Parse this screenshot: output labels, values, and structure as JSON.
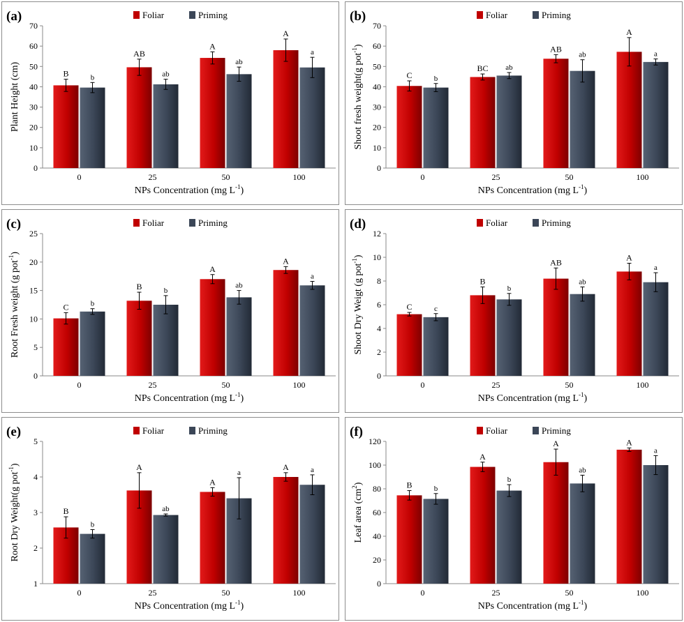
{
  "legend": {
    "foliar": "Foliar",
    "priming": "Priming"
  },
  "colors": {
    "foliar": "#c00000",
    "priming": "#3b4657"
  },
  "chart_data": [
    {
      "type": "bar",
      "panel": "(a)",
      "title": "",
      "ylabel": "Plant Height (cm)",
      "xlabel": "NPs Concentration (mg L",
      "xlabel_sup": "-1",
      "xlabel_end": ")",
      "categories": [
        "0",
        "25",
        "50",
        "100"
      ],
      "ylim": [
        0,
        70
      ],
      "yticks": [
        0,
        10,
        20,
        30,
        40,
        50,
        60,
        70
      ],
      "series": [
        {
          "name": "Foliar",
          "values": [
            40.7,
            49.6,
            54.2,
            58.0
          ],
          "errors": [
            3.0,
            4.0,
            3.0,
            5.5
          ],
          "letters": [
            "B",
            "AB",
            "A",
            "A"
          ]
        },
        {
          "name": "Priming",
          "values": [
            39.6,
            41.2,
            46.2,
            49.5
          ],
          "errors": [
            2.5,
            2.5,
            3.5,
            5.0
          ],
          "letters": [
            "b",
            "ab",
            "ab",
            "a"
          ]
        }
      ]
    },
    {
      "type": "bar",
      "panel": "(b)",
      "title": "",
      "ylabel": "Shoot fresh weight(g pot",
      "ylabel_sup": "-1",
      "ylabel_end": ")",
      "xlabel": "NPs Concentration (mg L",
      "xlabel_sup": "-1",
      "xlabel_end": ")",
      "categories": [
        "0",
        "25",
        "50",
        "100"
      ],
      "ylim": [
        0,
        70
      ],
      "yticks": [
        0,
        10,
        20,
        30,
        40,
        50,
        60,
        70
      ],
      "series": [
        {
          "name": "Foliar",
          "values": [
            40.4,
            44.8,
            53.8,
            57.2
          ],
          "errors": [
            2.5,
            1.5,
            2.0,
            7.0
          ],
          "letters": [
            "C",
            "BC",
            "AB",
            "A"
          ]
        },
        {
          "name": "Priming",
          "values": [
            39.6,
            45.5,
            47.8,
            52.2
          ],
          "errors": [
            2.0,
            1.5,
            5.5,
            1.5
          ],
          "letters": [
            "b",
            "ab",
            "ab",
            "a"
          ]
        }
      ]
    },
    {
      "type": "bar",
      "panel": "(c)",
      "title": "",
      "ylabel": "Root Fresh weight (g pot",
      "ylabel_sup": "-1",
      "ylabel_end": ")",
      "xlabel": "NPs Concentration (mg L",
      "xlabel_sup": "-1",
      "xlabel_end": ")",
      "categories": [
        "0",
        "25",
        "50",
        "100"
      ],
      "ylim": [
        0,
        25
      ],
      "yticks": [
        0,
        5,
        10,
        15,
        20,
        25
      ],
      "series": [
        {
          "name": "Foliar",
          "values": [
            10.1,
            13.2,
            17.0,
            18.6
          ],
          "errors": [
            1.0,
            1.5,
            0.8,
            0.6
          ],
          "letters": [
            "C",
            "B",
            "A",
            "A"
          ]
        },
        {
          "name": "Priming",
          "values": [
            11.3,
            12.5,
            13.8,
            15.9
          ],
          "errors": [
            0.5,
            1.6,
            1.2,
            0.7
          ],
          "letters": [
            "b",
            "b",
            "ab",
            "a"
          ]
        }
      ]
    },
    {
      "type": "bar",
      "panel": "(d)",
      "title": "",
      "ylabel": "Shoot Dry Weigt (g pot",
      "ylabel_sup": "-1",
      "ylabel_end": ")",
      "xlabel": "NPs Concentration (mg L",
      "xlabel_sup": "-1",
      "xlabel_end": ")",
      "categories": [
        "0",
        "25",
        "50",
        "100"
      ],
      "ylim": [
        0,
        12
      ],
      "yticks": [
        0,
        2,
        4,
        6,
        8,
        10,
        12
      ],
      "series": [
        {
          "name": "Foliar",
          "values": [
            5.2,
            6.8,
            8.2,
            8.8
          ],
          "errors": [
            0.15,
            0.7,
            0.9,
            0.7
          ],
          "letters": [
            "C",
            "B",
            "AB",
            "A"
          ]
        },
        {
          "name": "Priming",
          "values": [
            4.95,
            6.45,
            6.9,
            7.9
          ],
          "errors": [
            0.3,
            0.5,
            0.6,
            0.8
          ],
          "letters": [
            "c",
            "b",
            "ab",
            "a"
          ]
        }
      ]
    },
    {
      "type": "bar",
      "panel": "(e)",
      "title": "",
      "ylabel": "Root Dry Weight(g pot",
      "ylabel_sup": "-1",
      "ylabel_end": ")",
      "xlabel": "NPs Concentration (mg L",
      "xlabel_sup": "-1",
      "xlabel_end": ")",
      "categories": [
        "0",
        "25",
        "50",
        "100"
      ],
      "ylim": [
        1,
        5
      ],
      "yticks": [
        1,
        2,
        3,
        4,
        5
      ],
      "series": [
        {
          "name": "Foliar",
          "values": [
            2.58,
            3.62,
            3.58,
            4.0
          ],
          "errors": [
            0.3,
            0.5,
            0.12,
            0.12
          ],
          "letters": [
            "B",
            "A",
            "A",
            "A"
          ]
        },
        {
          "name": "Priming",
          "values": [
            2.4,
            2.93,
            3.4,
            3.78
          ],
          "errors": [
            0.12,
            0.03,
            0.58,
            0.28
          ],
          "letters": [
            "b",
            "ab",
            "a",
            "a"
          ]
        }
      ]
    },
    {
      "type": "bar",
      "panel": "(f)",
      "title": "",
      "ylabel": "Leaf area (cm",
      "ylabel_sup": "2",
      "ylabel_end": ")",
      "xlabel": "NPs Concentration (mg L",
      "xlabel_sup": "-1",
      "xlabel_end": ")",
      "categories": [
        "0",
        "25",
        "50",
        "100"
      ],
      "ylim": [
        0,
        120
      ],
      "yticks": [
        0,
        20,
        40,
        60,
        80,
        100,
        120
      ],
      "series": [
        {
          "name": "Foliar",
          "values": [
            74.5,
            98.5,
            102.5,
            113.0
          ],
          "errors": [
            4.0,
            4.0,
            11.0,
            1.5
          ],
          "letters": [
            "B",
            "A",
            "A",
            "A"
          ]
        },
        {
          "name": "Priming",
          "values": [
            71.5,
            78.5,
            84.5,
            100.0
          ],
          "errors": [
            4.5,
            5.0,
            7.0,
            8.0
          ],
          "letters": [
            "b",
            "b",
            "ab",
            "a"
          ]
        }
      ]
    }
  ]
}
